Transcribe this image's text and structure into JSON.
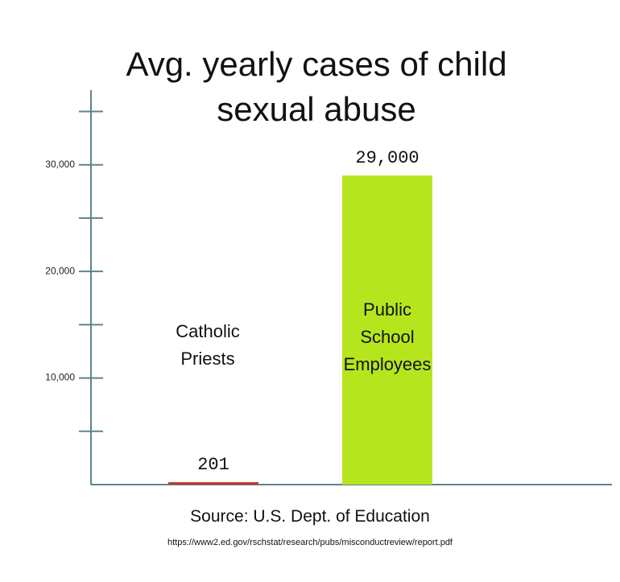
{
  "chart_data": {
    "type": "bar",
    "title": "Avg. yearly cases of child sexual abuse",
    "categories": [
      "Catholic Priests",
      "Public School Employees"
    ],
    "values": [
      201,
      29000
    ],
    "value_labels": [
      "201",
      "29,000"
    ],
    "colors": [
      "#c0392b",
      "#b5e61d"
    ],
    "ylim": [
      0,
      37000
    ],
    "yticks": [
      {
        "value": 10000,
        "label": "10,000"
      },
      {
        "value": 20000,
        "label": "20,000"
      },
      {
        "value": 30000,
        "label": "30,000"
      }
    ],
    "minor_yticks": [
      5000,
      15000,
      25000,
      35000
    ],
    "source": "Source: U.S. Dept. of Education",
    "url": "https://www2.ed.gov/rschstat/research/pubs/misconductreview/report.pdf"
  }
}
